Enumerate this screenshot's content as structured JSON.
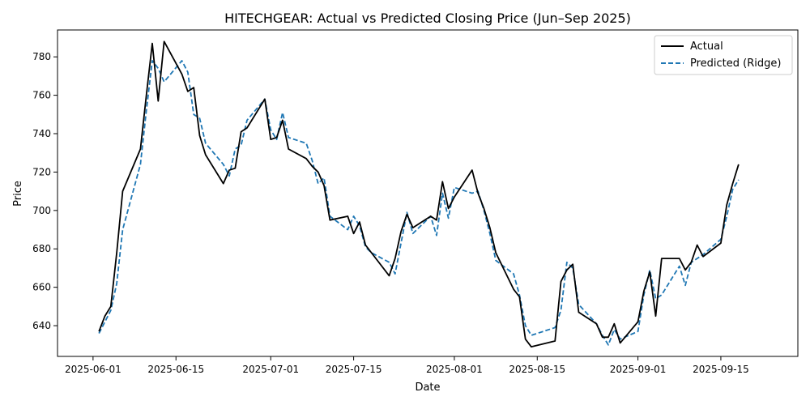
{
  "chart_data": {
    "type": "line",
    "title": "HITECHGEAR: Actual vs Predicted Closing Price (Jun–Sep 2025)",
    "xlabel": "Date",
    "ylabel": "Price",
    "xlim": [
      "2025-05-26",
      "2025-09-28"
    ],
    "ylim": [
      624,
      794
    ],
    "x_ticks": [
      "2025-06-01",
      "2025-06-15",
      "2025-07-01",
      "2025-07-15",
      "2025-08-01",
      "2025-08-15",
      "2025-09-01",
      "2025-09-15"
    ],
    "y_ticks": [
      640,
      660,
      680,
      700,
      720,
      740,
      760,
      780
    ],
    "grid": false,
    "legend": "top-right",
    "colors": {
      "actual": "#000000",
      "predicted": "#1f77b4"
    },
    "series": [
      {
        "name": "Actual",
        "style": "solid",
        "points": [
          [
            "2025-06-02",
            637
          ],
          [
            "2025-06-03",
            645
          ],
          [
            "2025-06-04",
            650
          ],
          [
            "2025-06-05",
            678
          ],
          [
            "2025-06-06",
            710
          ],
          [
            "2025-06-09",
            732
          ],
          [
            "2025-06-10",
            760
          ],
          [
            "2025-06-11",
            787
          ],
          [
            "2025-06-12",
            757
          ],
          [
            "2025-06-13",
            788
          ],
          [
            "2025-06-16",
            771
          ],
          [
            "2025-06-17",
            762
          ],
          [
            "2025-06-18",
            764
          ],
          [
            "2025-06-19",
            739
          ],
          [
            "2025-06-20",
            729
          ],
          [
            "2025-06-23",
            714
          ],
          [
            "2025-06-24",
            721
          ],
          [
            "2025-06-25",
            722
          ],
          [
            "2025-06-26",
            741
          ],
          [
            "2025-06-27",
            743
          ],
          [
            "2025-06-30",
            758
          ],
          [
            "2025-07-01",
            737
          ],
          [
            "2025-07-02",
            738
          ],
          [
            "2025-07-03",
            747
          ],
          [
            "2025-07-04",
            732
          ],
          [
            "2025-07-07",
            727
          ],
          [
            "2025-07-08",
            723
          ],
          [
            "2025-07-09",
            720
          ],
          [
            "2025-07-10",
            713
          ],
          [
            "2025-07-11",
            695
          ],
          [
            "2025-07-14",
            697
          ],
          [
            "2025-07-15",
            688
          ],
          [
            "2025-07-16",
            694
          ],
          [
            "2025-07-17",
            682
          ],
          [
            "2025-07-18",
            678
          ],
          [
            "2025-07-21",
            666
          ],
          [
            "2025-07-22",
            675
          ],
          [
            "2025-07-23",
            689
          ],
          [
            "2025-07-24",
            698
          ],
          [
            "2025-07-25",
            691
          ],
          [
            "2025-07-28",
            697
          ],
          [
            "2025-07-29",
            695
          ],
          [
            "2025-07-30",
            715
          ],
          [
            "2025-07-31",
            701
          ],
          [
            "2025-08-01",
            707
          ],
          [
            "2025-08-04",
            721
          ],
          [
            "2025-08-05",
            709
          ],
          [
            "2025-08-06",
            701
          ],
          [
            "2025-08-07",
            691
          ],
          [
            "2025-08-08",
            678
          ],
          [
            "2025-08-11",
            659
          ],
          [
            "2025-08-12",
            655
          ],
          [
            "2025-08-13",
            633
          ],
          [
            "2025-08-14",
            629
          ],
          [
            "2025-08-18",
            632
          ],
          [
            "2025-08-19",
            663
          ],
          [
            "2025-08-20",
            669
          ],
          [
            "2025-08-21",
            672
          ],
          [
            "2025-08-22",
            647
          ],
          [
            "2025-08-25",
            641
          ],
          [
            "2025-08-26",
            634
          ],
          [
            "2025-08-27",
            634
          ],
          [
            "2025-08-28",
            641
          ],
          [
            "2025-08-29",
            631
          ],
          [
            "2025-09-01",
            642
          ],
          [
            "2025-09-02",
            658
          ],
          [
            "2025-09-03",
            668
          ],
          [
            "2025-09-04",
            645
          ],
          [
            "2025-09-05",
            675
          ],
          [
            "2025-09-08",
            675
          ],
          [
            "2025-09-09",
            669
          ],
          [
            "2025-09-10",
            673
          ],
          [
            "2025-09-11",
            682
          ],
          [
            "2025-09-12",
            676
          ],
          [
            "2025-09-15",
            683
          ],
          [
            "2025-09-16",
            703
          ],
          [
            "2025-09-17",
            714
          ],
          [
            "2025-09-18",
            724
          ]
        ]
      },
      {
        "name": "Predicted (Ridge)",
        "style": "dashed",
        "points": [
          [
            "2025-06-02",
            636
          ],
          [
            "2025-06-03",
            642
          ],
          [
            "2025-06-04",
            648
          ],
          [
            "2025-06-05",
            662
          ],
          [
            "2025-06-06",
            690
          ],
          [
            "2025-06-09",
            724
          ],
          [
            "2025-06-10",
            752
          ],
          [
            "2025-06-11",
            778
          ],
          [
            "2025-06-12",
            774
          ],
          [
            "2025-06-13",
            767
          ],
          [
            "2025-06-16",
            778
          ],
          [
            "2025-06-17",
            772
          ],
          [
            "2025-06-18",
            750
          ],
          [
            "2025-06-19",
            748
          ],
          [
            "2025-06-20",
            735
          ],
          [
            "2025-06-23",
            724
          ],
          [
            "2025-06-24",
            718
          ],
          [
            "2025-06-25",
            732
          ],
          [
            "2025-06-26",
            734
          ],
          [
            "2025-06-27",
            747
          ],
          [
            "2025-06-30",
            758
          ],
          [
            "2025-07-01",
            742
          ],
          [
            "2025-07-02",
            737
          ],
          [
            "2025-07-03",
            751
          ],
          [
            "2025-07-04",
            738
          ],
          [
            "2025-07-07",
            735
          ],
          [
            "2025-07-08",
            726
          ],
          [
            "2025-07-09",
            714
          ],
          [
            "2025-07-10",
            717
          ],
          [
            "2025-07-11",
            697
          ],
          [
            "2025-07-14",
            690
          ],
          [
            "2025-07-15",
            697
          ],
          [
            "2025-07-16",
            692
          ],
          [
            "2025-07-17",
            681
          ],
          [
            "2025-07-18",
            678
          ],
          [
            "2025-07-21",
            673
          ],
          [
            "2025-07-22",
            667
          ],
          [
            "2025-07-23",
            683
          ],
          [
            "2025-07-24",
            699
          ],
          [
            "2025-07-25",
            688
          ],
          [
            "2025-07-28",
            697
          ],
          [
            "2025-07-29",
            687
          ],
          [
            "2025-07-30",
            709
          ],
          [
            "2025-07-31",
            696
          ],
          [
            "2025-08-01",
            712
          ],
          [
            "2025-08-04",
            709
          ],
          [
            "2025-08-05",
            710
          ],
          [
            "2025-08-06",
            700
          ],
          [
            "2025-08-07",
            688
          ],
          [
            "2025-08-08",
            674
          ],
          [
            "2025-08-11",
            667
          ],
          [
            "2025-08-12",
            656
          ],
          [
            "2025-08-13",
            640
          ],
          [
            "2025-08-14",
            635
          ],
          [
            "2025-08-18",
            639
          ],
          [
            "2025-08-19",
            648
          ],
          [
            "2025-08-20",
            673
          ],
          [
            "2025-08-21",
            670
          ],
          [
            "2025-08-22",
            651
          ],
          [
            "2025-08-25",
            641
          ],
          [
            "2025-08-26",
            635
          ],
          [
            "2025-08-27",
            630
          ],
          [
            "2025-08-28",
            638
          ],
          [
            "2025-08-29",
            633
          ],
          [
            "2025-09-01",
            637
          ],
          [
            "2025-09-02",
            656
          ],
          [
            "2025-09-03",
            669
          ],
          [
            "2025-09-04",
            654
          ],
          [
            "2025-09-05",
            656
          ],
          [
            "2025-09-08",
            671
          ],
          [
            "2025-09-09",
            661
          ],
          [
            "2025-09-10",
            673
          ],
          [
            "2025-09-11",
            675
          ],
          [
            "2025-09-12",
            677
          ],
          [
            "2025-09-15",
            685
          ],
          [
            "2025-09-16",
            697
          ],
          [
            "2025-09-17",
            711
          ],
          [
            "2025-09-18",
            716
          ]
        ]
      }
    ]
  }
}
